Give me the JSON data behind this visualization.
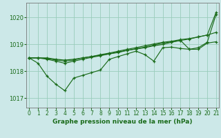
{
  "title": "Graphe pression niveau de la mer (hPa)",
  "bg_color": "#cce8e8",
  "grid_color": "#99ccbb",
  "line_color": "#1a6b1a",
  "xlim": [
    -0.3,
    21.3
  ],
  "ylim": [
    1016.65,
    1020.55
  ],
  "yticks": [
    1017,
    1018,
    1019,
    1020
  ],
  "xticks": [
    0,
    1,
    2,
    3,
    4,
    5,
    6,
    7,
    8,
    9,
    10,
    11,
    12,
    13,
    14,
    15,
    16,
    17,
    18,
    19,
    20,
    21
  ],
  "series": [
    [
      1018.5,
      1018.5,
      1018.5,
      1018.45,
      1018.42,
      1018.45,
      1018.5,
      1018.55,
      1018.6,
      1018.65,
      1018.7,
      1018.78,
      1018.83,
      1018.88,
      1018.95,
      1019.0,
      1019.08,
      1019.15,
      1019.2,
      1019.28,
      1019.35,
      1020.2
    ],
    [
      1018.5,
      1018.5,
      1018.48,
      1018.42,
      1018.38,
      1018.42,
      1018.5,
      1018.55,
      1018.62,
      1018.68,
      1018.75,
      1018.82,
      1018.88,
      1018.95,
      1019.02,
      1019.08,
      1019.12,
      1019.18,
      1019.22,
      1019.28,
      1019.35,
      1019.45
    ],
    [
      1018.5,
      1018.5,
      1018.45,
      1018.38,
      1018.3,
      1018.38,
      1018.45,
      1018.52,
      1018.58,
      1018.65,
      1018.72,
      1018.78,
      1018.84,
      1018.9,
      1018.98,
      1019.05,
      1019.1,
      1019.15,
      1018.82,
      1018.82,
      1019.05,
      1019.1
    ],
    [
      1018.5,
      1018.3,
      1017.82,
      1017.52,
      1017.28,
      1017.75,
      1017.85,
      1017.95,
      1018.05,
      1018.45,
      1018.55,
      1018.65,
      1018.75,
      1018.62,
      1018.38,
      1018.88,
      1018.9,
      1018.85,
      1018.82,
      1018.88,
      1019.08,
      1020.12
    ]
  ]
}
